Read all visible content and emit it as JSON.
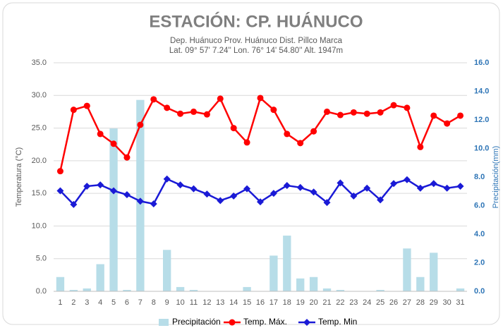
{
  "chart_data": {
    "type": "combo",
    "title": "ESTACIÓN: CP. HUÁNUCO",
    "subtitle": [
      "Dep. Huánuco Prov. Huánuco Dist. Pillco Marca",
      "Lat. 09° 57' 7.24'' Lon. 76° 14' 54.80'' Alt. 1947m"
    ],
    "ylabel": "Temperatura (°C)",
    "y2label": "Precipitación(mm)",
    "categories": [
      "1",
      "2",
      "3",
      "4",
      "5",
      "6",
      "7",
      "8",
      "9",
      "10",
      "11",
      "12",
      "13",
      "14",
      "15",
      "16",
      "17",
      "18",
      "19",
      "20",
      "21",
      "22",
      "23",
      "24",
      "25",
      "26",
      "27",
      "28",
      "29",
      "30",
      "31"
    ],
    "series": [
      {
        "name": "Precipitación",
        "type": "bar",
        "axis": "y2",
        "color": "#b7dde8",
        "values": [
          1.0,
          0.1,
          0.2,
          1.9,
          11.4,
          0.1,
          13.4,
          0,
          2.9,
          0.3,
          0.1,
          0,
          0,
          0,
          0.3,
          0,
          2.5,
          3.9,
          0.9,
          1.0,
          0.2,
          0.1,
          0,
          0,
          0.1,
          0,
          3.0,
          1.0,
          2.7,
          0,
          0.2
        ]
      },
      {
        "name": "Temp. Máx.",
        "type": "line",
        "marker": "circle",
        "color": "#ff0000",
        "values": [
          18.4,
          27.8,
          28.4,
          24.1,
          22.6,
          20.5,
          25.5,
          29.4,
          28.1,
          27.2,
          27.5,
          27.1,
          29.5,
          25.0,
          22.8,
          29.6,
          27.8,
          24.1,
          22.7,
          24.5,
          27.5,
          27.0,
          27.4,
          27.2,
          27.4,
          28.5,
          28.1,
          22.1,
          26.9,
          25.7,
          26.9
        ]
      },
      {
        "name": "Temp. Min",
        "type": "line",
        "marker": "diamond",
        "color": "#1a1ad6",
        "values": [
          15.4,
          13.3,
          16.1,
          16.3,
          15.4,
          14.8,
          13.8,
          13.4,
          17.2,
          16.3,
          15.7,
          14.9,
          13.9,
          14.6,
          15.7,
          13.7,
          15.0,
          16.2,
          15.9,
          15.2,
          13.6,
          16.6,
          14.6,
          15.8,
          14.0,
          16.5,
          17.1,
          15.8,
          16.5,
          15.8,
          16.1
        ]
      }
    ],
    "ylim": [
      0,
      35
    ],
    "yticks": [
      {
        "value": 0,
        "label": "0.0"
      },
      {
        "value": 5,
        "label": "5.0"
      },
      {
        "value": 10,
        "label": "10.0"
      },
      {
        "value": 15,
        "label": "15.0"
      },
      {
        "value": 20,
        "label": "20.0"
      },
      {
        "value": 25,
        "label": "25.0"
      },
      {
        "value": 30,
        "label": "30.0"
      },
      {
        "value": 35,
        "label": "35.0"
      }
    ],
    "y2lim": [
      0,
      16
    ],
    "y2ticks": [
      {
        "value": 0,
        "label": "0.0"
      },
      {
        "value": 2,
        "label": "2.0"
      },
      {
        "value": 4,
        "label": "4.0"
      },
      {
        "value": 6,
        "label": "6.0"
      },
      {
        "value": 8,
        "label": "8.0"
      },
      {
        "value": 10,
        "label": "10.0"
      },
      {
        "value": 12,
        "label": "12.0"
      },
      {
        "value": 14,
        "label": "14.0"
      },
      {
        "value": 16,
        "label": "16.0"
      }
    ],
    "y2color": "#2e75b6",
    "grid": true,
    "legend": "bottom"
  }
}
